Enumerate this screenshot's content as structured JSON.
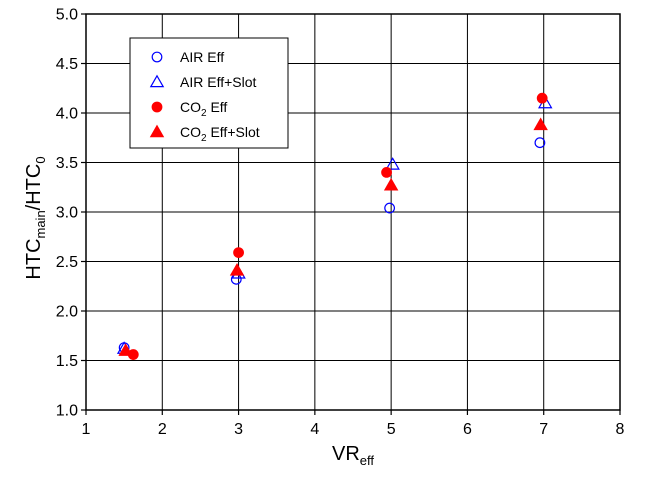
{
  "chart_data": {
    "type": "scatter",
    "title": "",
    "xlabel": {
      "main": "VR",
      "sub": "eff"
    },
    "ylabel": {
      "p1": "HTC",
      "sub1": "main",
      "p2": "/HTC",
      "sub2": "0"
    },
    "xlim": [
      1,
      8
    ],
    "ylim": [
      1.0,
      5.0
    ],
    "xticks": [
      "1",
      "2",
      "3",
      "4",
      "5",
      "6",
      "7",
      "8"
    ],
    "yticks": [
      "1.0",
      "1.5",
      "2.0",
      "2.5",
      "3.0",
      "3.5",
      "4.0",
      "4.5",
      "5.0"
    ],
    "grid": true,
    "legend_position": "top-left",
    "series": [
      {
        "name": "AIR Eff",
        "legend": {
          "pre": "AIR Eff",
          "sub": "",
          "post": ""
        },
        "marker": "circle-open",
        "color": "#0000ff",
        "x": [
          1.5,
          2.97,
          4.98,
          6.95
        ],
        "y": [
          1.63,
          2.32,
          3.04,
          3.7
        ]
      },
      {
        "name": "AIR Eff+Slot",
        "legend": {
          "pre": "AIR Eff+Slot",
          "sub": "",
          "post": ""
        },
        "marker": "triangle-open",
        "color": "#0000ff",
        "x": [
          1.5,
          3.0,
          5.02,
          7.02
        ],
        "y": [
          1.62,
          2.38,
          3.48,
          4.1
        ]
      },
      {
        "name": "CO2 Eff",
        "legend": {
          "pre": "CO",
          "sub": "2",
          "post": " Eff"
        },
        "marker": "circle-filled",
        "color": "#ff0000",
        "x": [
          1.62,
          3.0,
          4.94,
          6.98
        ],
        "y": [
          1.56,
          2.59,
          3.4,
          4.15
        ]
      },
      {
        "name": "CO2 Eff+Slot",
        "legend": {
          "pre": "CO",
          "sub": "2",
          "post": " Eff+Slot"
        },
        "marker": "triangle-filled",
        "color": "#ff0000",
        "x": [
          1.52,
          2.98,
          5.0,
          6.96
        ],
        "y": [
          1.6,
          2.41,
          3.27,
          3.88
        ]
      }
    ]
  }
}
